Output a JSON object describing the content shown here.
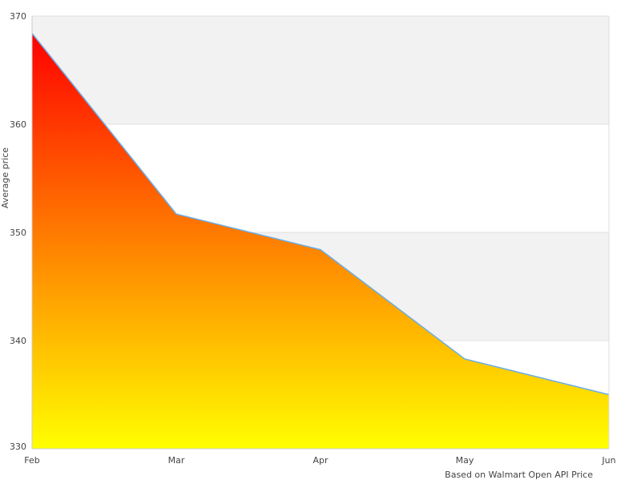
{
  "chart_data": {
    "type": "area",
    "title": "",
    "xlabel": "",
    "ylabel": "Average price",
    "credit": "Based on Walmart Open API Price",
    "categories": [
      "Feb",
      "Mar",
      "Apr",
      "May",
      "Jun"
    ],
    "values": [
      368.4,
      351.7,
      348.4,
      338.3,
      335.0
    ],
    "ylim": [
      330,
      370
    ],
    "yticks": [
      "330",
      "340",
      "350",
      "360",
      "370"
    ],
    "grid": true,
    "fill_gradient": {
      "top": "#ff0000",
      "bottom": "#ffff00"
    },
    "line_color": "#6aaee8",
    "band_color": "#f2f2f2"
  }
}
